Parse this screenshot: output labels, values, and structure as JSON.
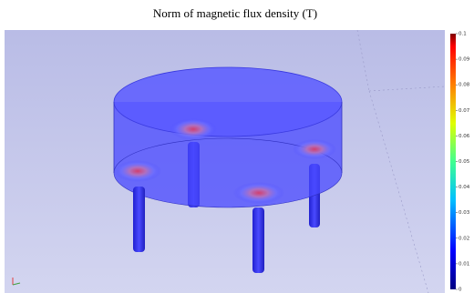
{
  "chart_data": {
    "type": "surface",
    "title": "Norm of magnetic flux density (T)",
    "clim": [
      0,
      0.1
    ],
    "cticks": [
      0,
      0.01,
      0.02,
      0.03,
      0.04,
      0.05,
      0.06,
      0.07,
      0.08,
      0.09,
      0.1
    ]
  }
}
